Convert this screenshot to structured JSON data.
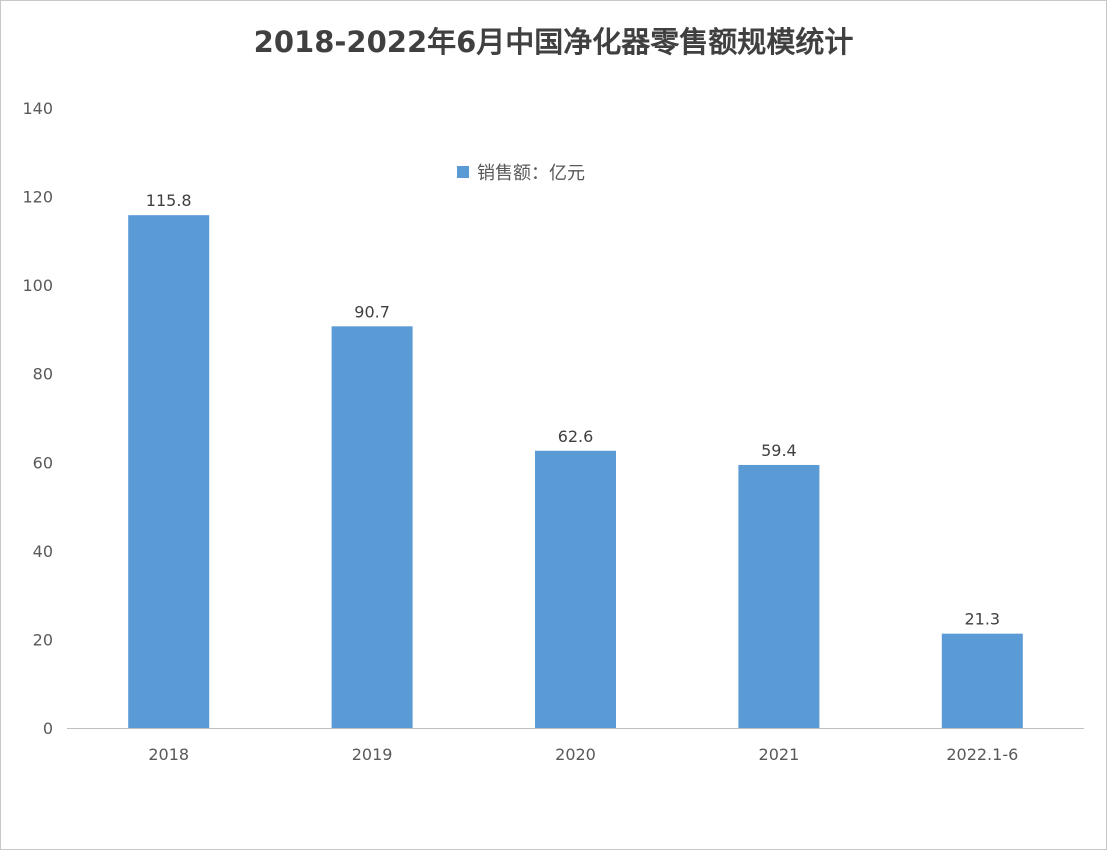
{
  "chart_data": {
    "type": "bar",
    "title": "2018-2022年6月中国净化器零售额规模统计",
    "categories": [
      "2018",
      "2019",
      "2020",
      "2021",
      "2022.1-6"
    ],
    "series": [
      {
        "name": "销售额：亿元",
        "values": [
          115.8,
          90.7,
          62.6,
          59.4,
          21.3
        ]
      }
    ],
    "data_labels": [
      "115.8",
      "90.7",
      "62.6",
      "59.4",
      "21.3"
    ],
    "y_ticks": [
      "0",
      "20",
      "40",
      "60",
      "80",
      "100",
      "120",
      "140"
    ],
    "ylim": [
      0,
      140
    ],
    "xlabel": "",
    "ylabel": "",
    "grid": false,
    "legend_position": "top-center",
    "bar_color": "#5B9BD5",
    "axis_color": "#BFBFBF"
  }
}
